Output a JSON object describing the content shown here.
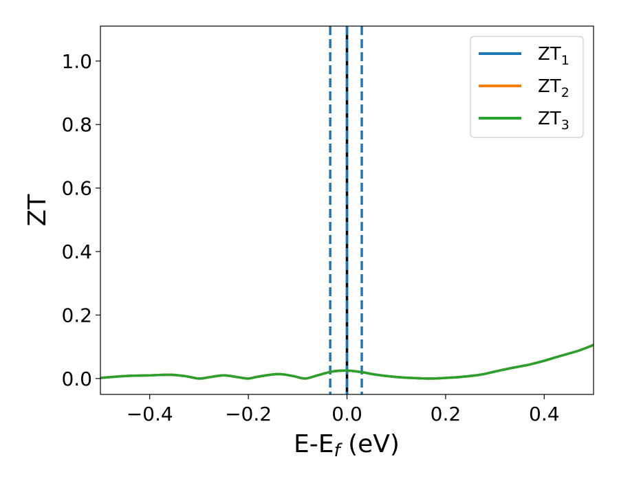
{
  "chart_data": {
    "type": "line",
    "title": "",
    "xlabel": {
      "main": "E-E",
      "sub": "f",
      "suffix": " (eV)"
    },
    "ylabel": "ZT",
    "xlim": [
      -0.5,
      0.5
    ],
    "ylim": [
      -0.05,
      1.11
    ],
    "x_ticks": [
      {
        "value": -0.4,
        "label": "−0.4"
      },
      {
        "value": -0.2,
        "label": "−0.2"
      },
      {
        "value": 0.0,
        "label": "0.0"
      },
      {
        "value": 0.2,
        "label": "0.2"
      },
      {
        "value": 0.4,
        "label": "0.4"
      }
    ],
    "y_ticks": [
      {
        "value": 0.0,
        "label": "0.0"
      },
      {
        "value": 0.2,
        "label": "0.2"
      },
      {
        "value": 0.4,
        "label": "0.4"
      },
      {
        "value": 0.6,
        "label": "0.6"
      },
      {
        "value": 0.8,
        "label": "0.8"
      },
      {
        "value": 1.0,
        "label": "1.0"
      }
    ],
    "grid": false,
    "legend_position": "top-right",
    "x": [
      -0.5,
      -0.45,
      -0.4,
      -0.36,
      -0.33,
      -0.3,
      -0.28,
      -0.25,
      -0.22,
      -0.2,
      -0.18,
      -0.14,
      -0.11,
      -0.085,
      -0.06,
      -0.03,
      0.0,
      0.03,
      0.06,
      0.1,
      0.13,
      0.17,
      0.2,
      0.23,
      0.27,
      0.3,
      0.33,
      0.37,
      0.4,
      0.43,
      0.47,
      0.5
    ],
    "series": [
      {
        "name": "ZT",
        "sub": "1",
        "color": "#1f77b4",
        "values": [
          0.002,
          0.008,
          0.01,
          0.012,
          0.008,
          0.0,
          0.004,
          0.01,
          0.004,
          0.0,
          0.006,
          0.014,
          0.008,
          0.0,
          0.01,
          0.022,
          0.025,
          0.02,
          0.012,
          0.005,
          0.002,
          0.0,
          0.002,
          0.005,
          0.012,
          0.022,
          0.032,
          0.044,
          0.056,
          0.07,
          0.088,
          0.106
        ]
      },
      {
        "name": "ZT",
        "sub": "2",
        "color": "#ff7f0e",
        "values": [
          0.002,
          0.008,
          0.01,
          0.012,
          0.008,
          0.0,
          0.004,
          0.01,
          0.004,
          0.0,
          0.006,
          0.014,
          0.008,
          0.0,
          0.01,
          0.022,
          0.025,
          0.02,
          0.012,
          0.005,
          0.002,
          0.0,
          0.002,
          0.005,
          0.012,
          0.022,
          0.032,
          0.044,
          0.056,
          0.07,
          0.088,
          0.106
        ]
      },
      {
        "name": "ZT",
        "sub": "3",
        "color": "#2ca02c",
        "values": [
          0.002,
          0.008,
          0.01,
          0.012,
          0.008,
          0.0,
          0.004,
          0.01,
          0.004,
          0.0,
          0.006,
          0.014,
          0.008,
          0.0,
          0.01,
          0.022,
          0.025,
          0.02,
          0.012,
          0.005,
          0.002,
          0.0,
          0.002,
          0.005,
          0.012,
          0.022,
          0.032,
          0.044,
          0.056,
          0.07,
          0.088,
          0.106
        ]
      }
    ],
    "vlines": [
      {
        "x": -0.034,
        "color": "#1f77b4",
        "style": "dashed"
      },
      {
        "x": 0.0,
        "color": "#000000",
        "style": "solid"
      },
      {
        "x": 0.0,
        "color": "#1f77b4",
        "style": "dashed"
      },
      {
        "x": 0.03,
        "color": "#1f77b4",
        "style": "dashed"
      }
    ]
  }
}
